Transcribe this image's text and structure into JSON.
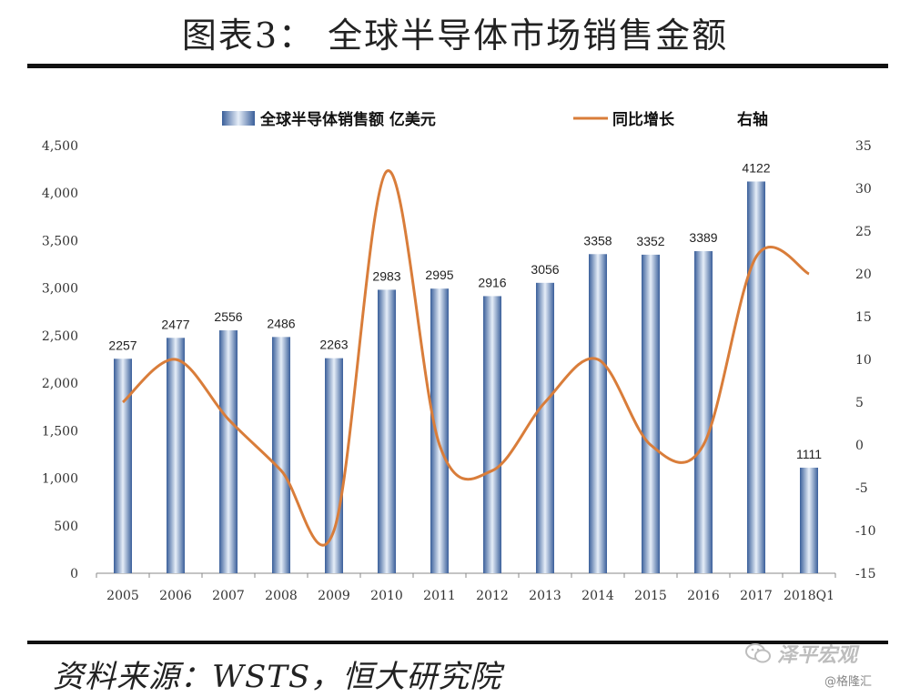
{
  "title": "图表3：  全球半导体市场销售金额",
  "source": "资料来源：WSTS，恒大研究院",
  "watermark": {
    "brand": "泽平宏观",
    "account": "@格隆汇"
  },
  "legend": {
    "bar_label": "全球半导体销售额  亿美元",
    "line_label": "同比增长",
    "axis_note": "右轴"
  },
  "colors": {
    "bar_dark": "#3a5f9a",
    "bar_light": "#dfe8f5",
    "line": "#d97d3a"
  },
  "chart_data": {
    "type": "bar",
    "categories": [
      "2005",
      "2006",
      "2007",
      "2008",
      "2009",
      "2010",
      "2011",
      "2012",
      "2013",
      "2014",
      "2015",
      "2016",
      "2017",
      "2018Q1"
    ],
    "series": [
      {
        "name": "全球半导体销售额  亿美元",
        "type": "bar",
        "axis": "left",
        "values": [
          2257,
          2477,
          2556,
          2486,
          2263,
          2983,
          2995,
          2916,
          3056,
          3358,
          3352,
          3389,
          4122,
          1111
        ]
      },
      {
        "name": "同比增长",
        "type": "line",
        "axis": "right",
        "values": [
          5,
          10,
          3,
          -3,
          -10,
          32,
          0,
          -3,
          5,
          10,
          0,
          0,
          22,
          20
        ]
      }
    ],
    "data_labels": [
      "2257",
      "2477",
      "2556",
      "2486",
      "2263",
      "2983",
      "2995",
      "2916",
      "3056",
      "3358",
      "3352",
      "3389",
      "4122",
      "1111"
    ],
    "y_left": {
      "min": 0,
      "max": 4500,
      "ticks": [
        0,
        500,
        1000,
        1500,
        2000,
        2500,
        3000,
        3500,
        4000,
        4500
      ],
      "tick_labels": [
        "0",
        "500",
        "1,000",
        "1,500",
        "2,000",
        "2,500",
        "3,000",
        "3,500",
        "4,000",
        "4,500"
      ]
    },
    "y_right": {
      "min": -15,
      "max": 35,
      "ticks": [
        -15,
        -10,
        -5,
        0,
        5,
        10,
        15,
        20,
        25,
        30,
        35
      ],
      "tick_labels": [
        "-15",
        "-10",
        "-5",
        "0",
        "5",
        "10",
        "15",
        "20",
        "25",
        "30",
        "35"
      ]
    },
    "grid": false,
    "legend_position": "top"
  }
}
